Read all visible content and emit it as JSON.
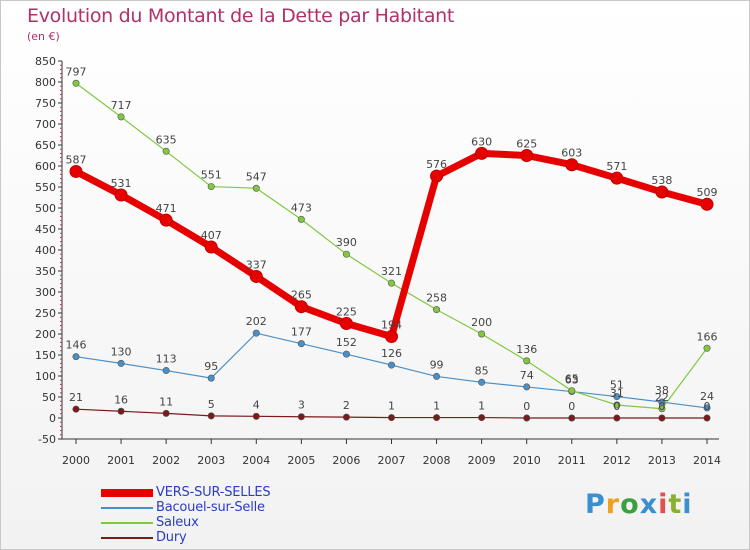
{
  "chart_data": {
    "type": "line",
    "title": "Evolution du Montant de la Dette par Habitant",
    "subtitle": "(en €)",
    "x": [
      "2000",
      "2001",
      "2002",
      "2003",
      "2004",
      "2005",
      "2006",
      "2007",
      "2008",
      "2009",
      "2010",
      "2011",
      "2012",
      "2013",
      "2014"
    ],
    "ylim": [
      -50,
      850
    ],
    "yticks": [
      "-50",
      "0",
      "50",
      "100",
      "150",
      "200",
      "250",
      "300",
      "350",
      "400",
      "450",
      "500",
      "550",
      "600",
      "650",
      "700",
      "750",
      "800",
      "850"
    ],
    "grid": false,
    "legend_position": "bottom-left",
    "series": [
      {
        "name": "VERS-SUR-SELLES",
        "color": "#e60000",
        "values": [
          587,
          531,
          471,
          407,
          337,
          265,
          225,
          194,
          576,
          630,
          625,
          603,
          571,
          538,
          509
        ],
        "labels": [
          "587",
          "531",
          "471",
          "407",
          "337",
          "265",
          "225",
          "194",
          "576",
          "630",
          "625",
          "603",
          "571",
          "538",
          "509"
        ]
      },
      {
        "name": "Bacouel-sur-Selle",
        "color": "#4a90c8",
        "values": [
          146,
          130,
          113,
          95,
          202,
          177,
          152,
          126,
          99,
          85,
          74,
          63,
          51,
          38,
          24
        ],
        "labels": [
          "146",
          "130",
          "113",
          "95",
          "202",
          "177",
          "152",
          "126",
          "99",
          "85",
          "74",
          "63",
          "51",
          "38",
          "24"
        ]
      },
      {
        "name": "Saleux",
        "color": "#80c840",
        "values": [
          797,
          717,
          635,
          551,
          547,
          473,
          390,
          321,
          258,
          200,
          136,
          65,
          31,
          22,
          166
        ],
        "labels": [
          "797",
          "717",
          "635",
          "551",
          "547",
          "473",
          "390",
          "321",
          "258",
          "200",
          "136",
          "65",
          "31",
          "22",
          "166"
        ]
      },
      {
        "name": "Dury",
        "color": "#7a1a1a",
        "values": [
          21,
          16,
          11,
          5,
          4,
          3,
          2,
          1,
          1,
          1,
          0,
          0,
          0,
          0,
          0
        ],
        "labels": [
          "21",
          "16",
          "11",
          "5",
          "4",
          "3",
          "2",
          "1",
          "1",
          "1",
          "0",
          "0",
          "0",
          "0",
          "0"
        ]
      }
    ]
  },
  "logo": {
    "letters": [
      "P",
      "r",
      "o",
      "x",
      "i",
      "t",
      "i"
    ],
    "colors": [
      "#3a8fd0",
      "#f0a020",
      "#3aa040",
      "#3a8fd0",
      "#e05050",
      "#8ab030",
      "#3a8fd0"
    ]
  }
}
